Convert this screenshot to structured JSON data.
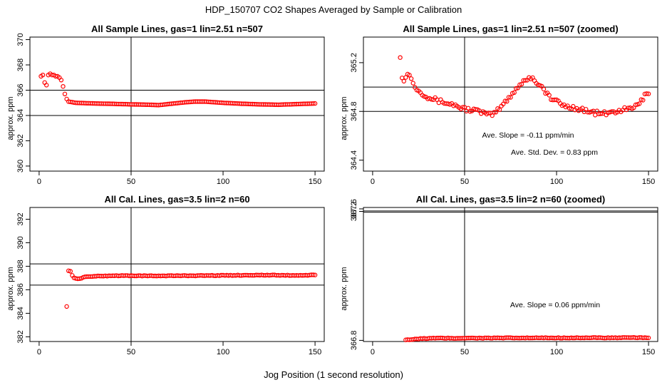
{
  "figure": {
    "title": "HDP_150707  CO2 Shapes Averaged by Sample or Calibration",
    "xlabel": "Jog Position (1 second resolution)",
    "point_color": "#ff0000",
    "line_color": "#000000"
  },
  "chart_data": [
    {
      "id": "p1",
      "type": "scatter",
      "title": "All Sample Lines, gas=1 lin=2.51 n=507",
      "xlabel": "",
      "ylabel": "approx. ppm",
      "xlim": [
        -5,
        155
      ],
      "ylim": [
        359.6,
        370.2
      ],
      "xticks": [
        0,
        50,
        100,
        150
      ],
      "yticks": [
        360,
        362,
        364,
        366,
        368,
        370
      ],
      "vlines": [
        50
      ],
      "hlines": [
        364,
        366
      ],
      "annotations": [],
      "series": [
        {
          "name": "sample",
          "x": [],
          "y": []
        }
      ],
      "gen": {
        "x_start": 1,
        "x_end": 150,
        "anchors": [
          [
            1,
            367.1
          ],
          [
            2,
            367.2
          ],
          [
            3,
            366.6
          ],
          [
            4,
            366.4
          ],
          [
            5,
            367.2
          ],
          [
            6,
            367.3
          ],
          [
            7,
            367.2
          ],
          [
            8,
            367.2
          ],
          [
            9,
            367.1
          ],
          [
            10,
            367.1
          ],
          [
            11,
            367.0
          ],
          [
            12,
            366.8
          ],
          [
            13,
            366.3
          ],
          [
            14,
            365.7
          ],
          [
            15,
            365.3
          ],
          [
            16,
            365.1
          ],
          [
            18,
            365.05
          ],
          [
            20,
            365.0
          ],
          [
            30,
            364.95
          ],
          [
            40,
            364.92
          ],
          [
            50,
            364.88
          ],
          [
            60,
            364.85
          ],
          [
            65,
            364.82
          ],
          [
            70,
            364.9
          ],
          [
            80,
            365.05
          ],
          [
            85,
            365.1
          ],
          [
            90,
            365.1
          ],
          [
            100,
            365.0
          ],
          [
            110,
            364.93
          ],
          [
            120,
            364.88
          ],
          [
            130,
            364.85
          ],
          [
            140,
            364.9
          ],
          [
            150,
            364.95
          ]
        ]
      }
    },
    {
      "id": "p2",
      "type": "scatter",
      "title": "All Sample Lines, gas=1 lin=2.51 n=507 (zoomed)",
      "xlabel": "",
      "ylabel": "approx. ppm",
      "xlim": [
        -5,
        155
      ],
      "ylim": [
        364.31,
        365.41
      ],
      "xticks": [
        0,
        50,
        100,
        150
      ],
      "yticks": [
        364.4,
        364.8,
        365.2
      ],
      "vlines": [
        50
      ],
      "hlines": [
        364.8,
        365.0
      ],
      "annotations": [
        "Ave. Slope =  -0.11  ppm/min",
        "Ave. Std. Dev. =  0.83  ppm"
      ],
      "series": [
        {
          "name": "sample-zoomed",
          "x": [],
          "y": []
        }
      ],
      "gen": {
        "x_start": 15,
        "x_end": 150,
        "noise": 0.018,
        "anchors": [
          [
            15,
            365.26
          ],
          [
            16,
            365.09
          ],
          [
            17,
            365.04
          ],
          [
            18,
            365.08
          ],
          [
            19,
            365.12
          ],
          [
            20,
            365.1
          ],
          [
            22,
            365.03
          ],
          [
            25,
            364.97
          ],
          [
            30,
            364.92
          ],
          [
            35,
            364.89
          ],
          [
            40,
            364.87
          ],
          [
            45,
            364.85
          ],
          [
            50,
            364.82
          ],
          [
            55,
            364.81
          ],
          [
            60,
            364.79
          ],
          [
            63,
            364.77
          ],
          [
            66,
            364.78
          ],
          [
            70,
            364.84
          ],
          [
            75,
            364.93
          ],
          [
            80,
            365.02
          ],
          [
            85,
            365.08
          ],
          [
            88,
            365.06
          ],
          [
            92,
            365.0
          ],
          [
            96,
            364.92
          ],
          [
            100,
            364.88
          ],
          [
            105,
            364.84
          ],
          [
            110,
            364.83
          ],
          [
            115,
            364.81
          ],
          [
            120,
            364.79
          ],
          [
            125,
            364.78
          ],
          [
            130,
            364.79
          ],
          [
            135,
            364.81
          ],
          [
            140,
            364.82
          ],
          [
            145,
            364.86
          ],
          [
            148,
            364.93
          ],
          [
            150,
            364.96
          ]
        ]
      }
    },
    {
      "id": "p3",
      "type": "scatter",
      "title": "All Cal. Lines, gas=3.5 lin=2 n=60",
      "xlabel": "",
      "ylabel": "approx. ppm",
      "xlim": [
        -5,
        155
      ],
      "ylim": [
        381.6,
        393.0
      ],
      "xticks": [
        0,
        50,
        100,
        150
      ],
      "yticks": [
        382,
        384,
        386,
        388,
        390,
        392
      ],
      "vlines": [
        50
      ],
      "hlines": [
        386.4,
        388.2
      ],
      "annotations": [],
      "series": [
        {
          "name": "calibration",
          "x": [],
          "y": []
        }
      ],
      "gen": {
        "x_start": 15,
        "x_end": 150,
        "noise": 0.025,
        "anchors": [
          [
            15,
            384.6
          ],
          [
            16,
            387.6
          ],
          [
            17,
            387.6
          ],
          [
            18,
            387.2
          ],
          [
            19,
            387.0
          ],
          [
            20,
            386.95
          ],
          [
            22,
            386.95
          ],
          [
            25,
            387.1
          ],
          [
            30,
            387.15
          ],
          [
            40,
            387.2
          ],
          [
            50,
            387.2
          ],
          [
            60,
            387.18
          ],
          [
            80,
            387.2
          ],
          [
            100,
            387.22
          ],
          [
            120,
            387.25
          ],
          [
            140,
            387.22
          ],
          [
            150,
            387.25
          ]
        ]
      }
    },
    {
      "id": "p4",
      "type": "scatter",
      "title": "All Cal. Lines, gas=3.5 lin=2 n=60 (zoomed)",
      "xlabel": "",
      "ylabel": "approx. ppm",
      "xlim": [
        -5,
        155
      ],
      "ylim": [
        366.62,
        387.82
      ],
      "xticks": [
        0,
        50,
        100,
        150
      ],
      "yticks": [
        366.8,
        387.2,
        387.6
      ],
      "vlines": [
        50
      ],
      "hlines": [
        387.27,
        387.07
      ],
      "annotations": [
        "Ave. Slope =  0.06  ppm/min"
      ],
      "series": [
        {
          "name": "calibration-zoomed",
          "x": [],
          "y": []
        }
      ],
      "gen": {
        "x_start": 18,
        "x_end": 150,
        "noise": 0.055,
        "anchors": [
          [
            18,
            366.93
          ],
          [
            20,
            366.91
          ],
          [
            22,
            366.95
          ],
          [
            24,
            367.0
          ],
          [
            27,
            367.08
          ],
          [
            30,
            367.12
          ],
          [
            35,
            367.15
          ],
          [
            40,
            367.15
          ],
          [
            45,
            367.13
          ],
          [
            50,
            367.17
          ],
          [
            60,
            367.17
          ],
          [
            70,
            367.18
          ],
          [
            80,
            367.18
          ],
          [
            90,
            367.19
          ],
          [
            100,
            367.2
          ],
          [
            110,
            367.21
          ],
          [
            120,
            367.21
          ],
          [
            130,
            367.21
          ],
          [
            140,
            367.22
          ],
          [
            150,
            367.22
          ]
        ]
      }
    }
  ]
}
